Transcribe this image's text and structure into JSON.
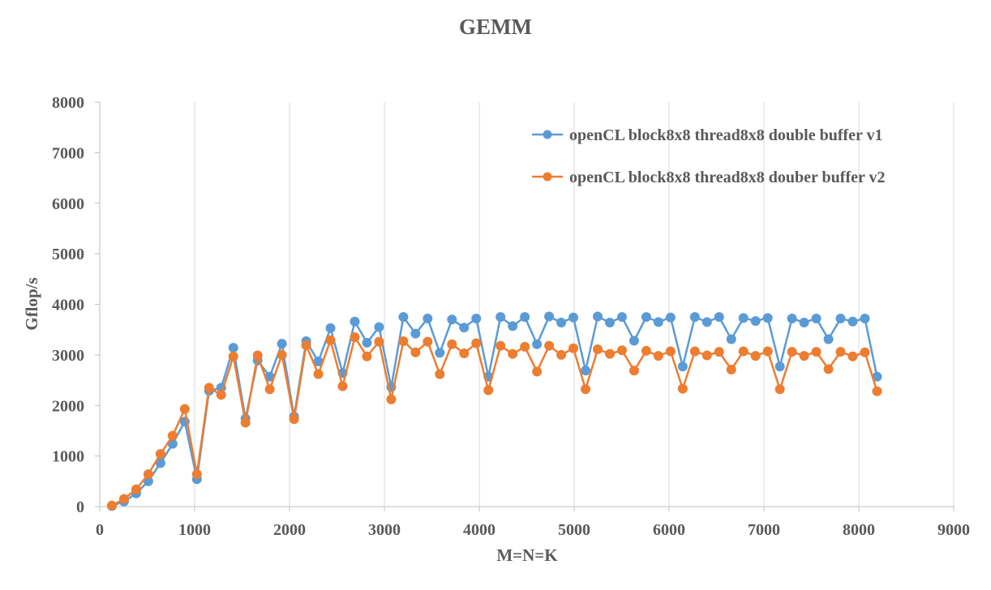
{
  "chart_data": {
    "type": "line",
    "title": "GEMM",
    "xlabel": "M=N=K",
    "ylabel": "Gflop/s",
    "xlim": [
      0,
      9000
    ],
    "ylim": [
      0,
      8000
    ],
    "x_ticks": [
      0,
      1000,
      2000,
      3000,
      4000,
      5000,
      6000,
      7000,
      8000,
      9000
    ],
    "y_ticks": [
      0,
      1000,
      2000,
      3000,
      4000,
      5000,
      6000,
      7000,
      8000
    ],
    "grid": "vertical",
    "legend_position": "top-right",
    "x": [
      128,
      256,
      384,
      512,
      640,
      768,
      896,
      1024,
      1152,
      1280,
      1408,
      1536,
      1664,
      1792,
      1920,
      2048,
      2176,
      2304,
      2432,
      2560,
      2688,
      2816,
      2944,
      3072,
      3200,
      3328,
      3456,
      3584,
      3712,
      3840,
      3968,
      4096,
      4224,
      4352,
      4480,
      4608,
      4736,
      4864,
      4992,
      5120,
      5248,
      5376,
      5504,
      5632,
      5760,
      5888,
      6016,
      6144,
      6272,
      6400,
      6528,
      6656,
      6784,
      6912,
      7040,
      7168,
      7296,
      7424,
      7552,
      7680,
      7808,
      7936,
      8064,
      8192
    ],
    "series": [
      {
        "name": "openCL block8x8 thread8x8 double buffer v1",
        "color": "#5B9BD5",
        "values": [
          10,
          100,
          260,
          500,
          860,
          1240,
          1680,
          540,
          2290,
          2350,
          3140,
          1740,
          2890,
          2570,
          3220,
          1780,
          3270,
          2870,
          3530,
          2640,
          3660,
          3240,
          3550,
          2360,
          3750,
          3420,
          3720,
          3040,
          3700,
          3540,
          3720,
          2570,
          3750,
          3570,
          3750,
          3210,
          3760,
          3640,
          3740,
          2690,
          3760,
          3640,
          3750,
          3280,
          3750,
          3650,
          3740,
          2770,
          3750,
          3650,
          3750,
          3310,
          3730,
          3670,
          3730,
          2770,
          3720,
          3640,
          3720,
          3310,
          3720,
          3660,
          3720,
          2570
        ]
      },
      {
        "name": "openCL block8x8 thread8x8 douber buffer v2",
        "color": "#ED7D31",
        "values": [
          20,
          150,
          340,
          640,
          1040,
          1400,
          1930,
          640,
          2350,
          2210,
          2970,
          1660,
          2990,
          2320,
          3000,
          1730,
          3190,
          2620,
          3290,
          2380,
          3350,
          2970,
          3260,
          2120,
          3270,
          3050,
          3260,
          2620,
          3210,
          3030,
          3230,
          2300,
          3180,
          3020,
          3160,
          2670,
          3180,
          3000,
          3130,
          2320,
          3110,
          3020,
          3090,
          2690,
          3080,
          2980,
          3070,
          2330,
          3070,
          2990,
          3060,
          2710,
          3070,
          2980,
          3070,
          2320,
          3060,
          2980,
          3060,
          2720,
          3060,
          2970,
          3050,
          2280
        ]
      }
    ]
  }
}
